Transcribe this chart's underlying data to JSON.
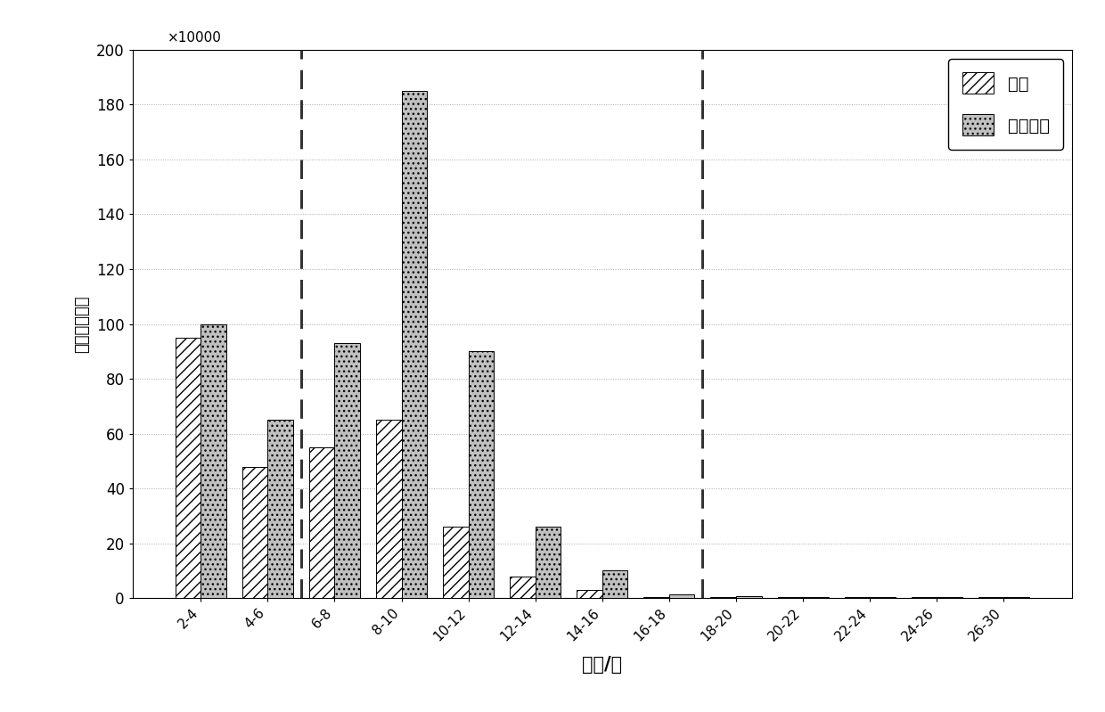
{
  "categories": [
    "2-4",
    "4-6",
    "6-8",
    "8-10",
    "10-12",
    "12-14",
    "14-16",
    "16-18",
    "18-20",
    "20-22",
    "22-24",
    "24-26",
    "26-30"
  ],
  "series1_name": "沿江",
  "series2_name": "广靖锡澄",
  "series1_values": [
    95,
    48,
    55,
    65,
    26,
    8,
    3,
    0.5,
    0.5,
    0.3,
    0.3,
    0.3,
    0.3
  ],
  "series2_values": [
    100,
    65,
    93,
    185,
    90,
    26,
    10,
    1.5,
    0.8,
    0.5,
    0.5,
    0.5,
    0.5
  ],
  "ylabel": "累计当量轴次",
  "xlabel": "轴重/吨",
  "ylabel_unit": "×10000",
  "ylim": [
    0,
    200
  ],
  "yticks": [
    0,
    20,
    40,
    60,
    80,
    100,
    120,
    140,
    160,
    180,
    200
  ],
  "dashed_line_1_idx": 1.5,
  "dashed_line_2_idx": 7.5,
  "background_color": "#ffffff",
  "grid_color": "#aaaaaa",
  "dashed_color": "#333333",
  "bar_width": 0.38
}
